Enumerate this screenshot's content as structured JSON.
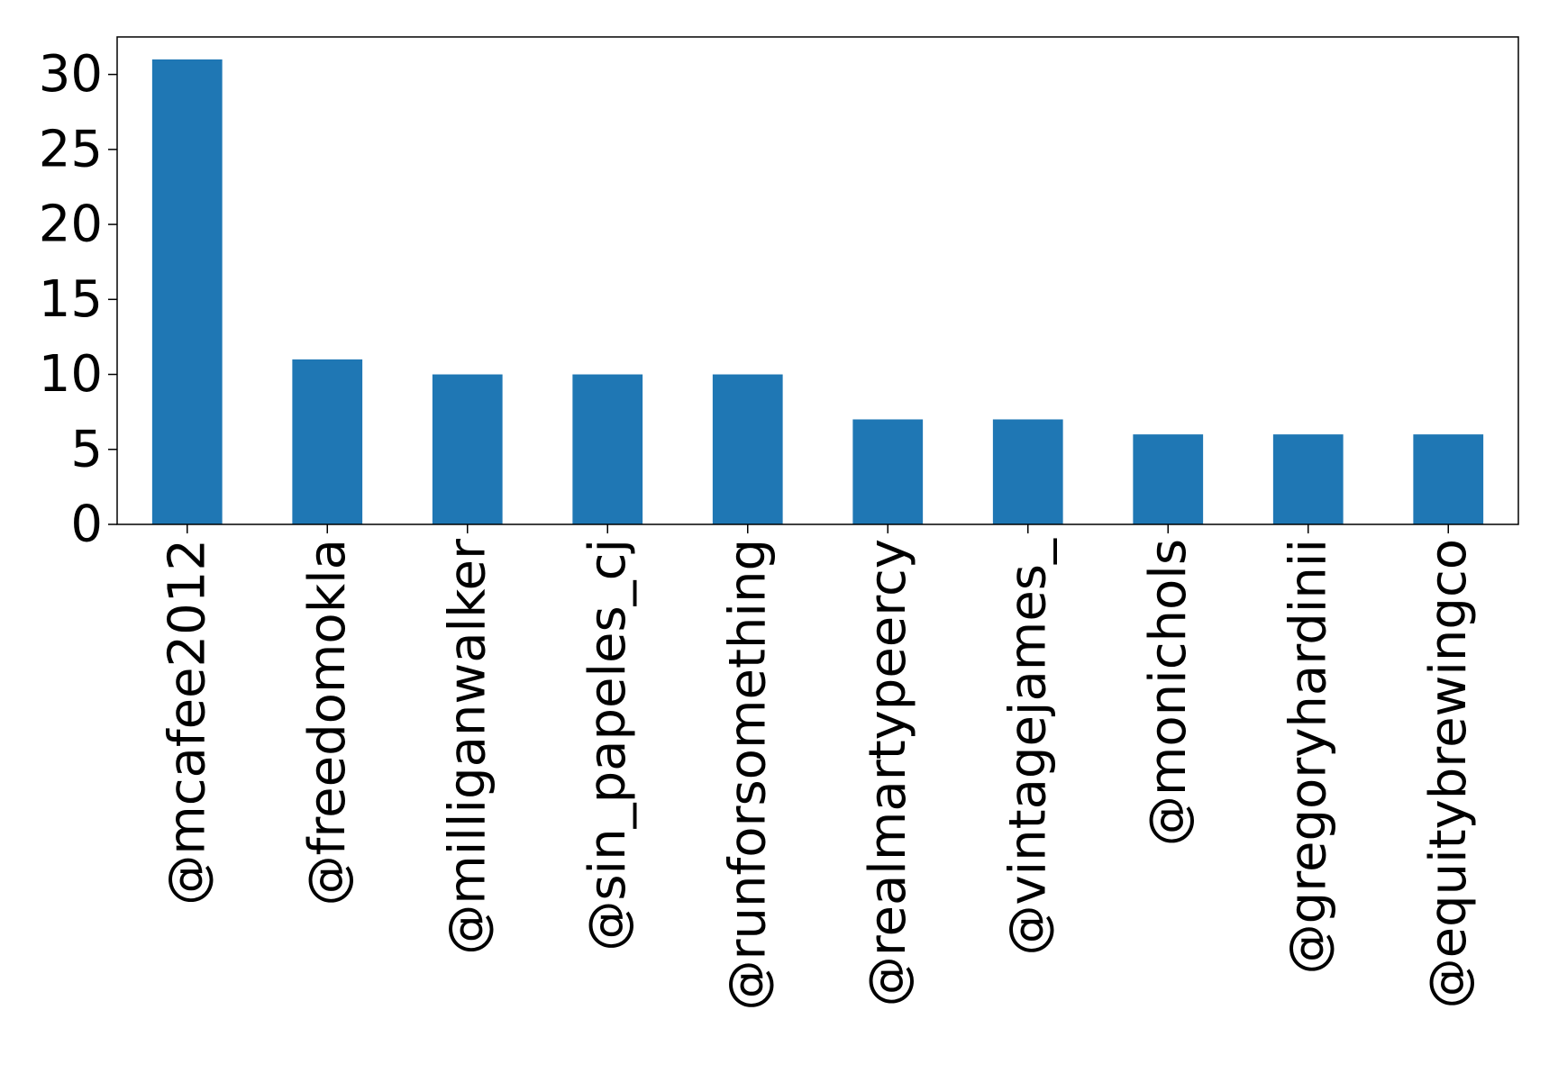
{
  "chart_data": {
    "type": "bar",
    "categories": [
      "@mcafee2012",
      "@freedomokla",
      "@milliganwalker",
      "@sin_papeles_cj",
      "@runforsomething",
      "@realmartypeercy",
      "@vintagejames_",
      "@monichols",
      "@gregoryhardinii",
      "@equitybrewingco"
    ],
    "values": [
      31,
      11,
      10,
      10,
      10,
      7,
      7,
      6,
      6,
      6
    ],
    "yticks": [
      "0",
      "5",
      "10",
      "15",
      "20",
      "25",
      "30"
    ],
    "ylim": [
      0,
      32.5
    ],
    "bar_color": "#1f77b4",
    "grid": false,
    "legend": false
  }
}
